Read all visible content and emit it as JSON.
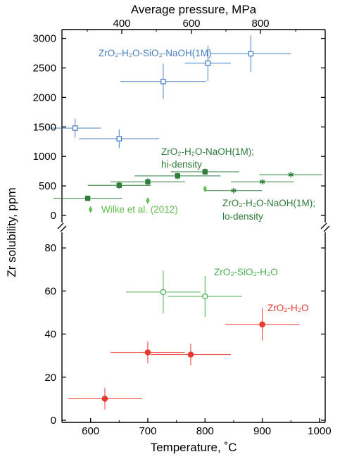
{
  "chart_data": {
    "type": "scatter",
    "top_axis_label": "Average pressure, MPa",
    "top_ticks": [
      "400",
      "600",
      "800"
    ],
    "xlabel": "Temperature, ˚C",
    "x_ticks": [
      "600",
      "700",
      "800",
      "900",
      "1000"
    ],
    "xlim": [
      550,
      1010
    ],
    "ylabel": "Zr solubility, ppm",
    "upper_panel": {
      "ylim": [
        0,
        3150
      ],
      "y_ticks": [
        "0",
        "500",
        "1000",
        "1500",
        "2000",
        "2500",
        "3000"
      ],
      "series": [
        {
          "name": "ZrO₂-H₂O-SiO₂-NaOH(1M)",
          "color": "#4a7fc0",
          "marker": "open-square",
          "points": [
            {
              "x": 573,
              "y": 1480,
              "xerr": 45,
              "yerr": 160
            },
            {
              "x": 650,
              "y": 1300,
              "xerr": 70,
              "yerr": 160
            },
            {
              "x": 727,
              "y": 2270,
              "xerr": 75,
              "yerr": 300
            },
            {
              "x": 805,
              "y": 2580,
              "xerr": 40,
              "yerr": 300
            },
            {
              "x": 880,
              "y": 2740,
              "xerr": 70,
              "yerr": 310
            }
          ]
        },
        {
          "name": "ZrO₂-H₂O-NaOH(1M); hi-density",
          "color": "#2e7d3a",
          "marker": "filled-square",
          "points": [
            {
              "x": 595,
              "y": 290,
              "xerr": 60,
              "yerr": 0
            },
            {
              "x": 650,
              "y": 510,
              "xerr": 55,
              "yerr": 60
            },
            {
              "x": 700,
              "y": 570,
              "xerr": 65,
              "yerr": 60
            },
            {
              "x": 752,
              "y": 670,
              "xerr": 75,
              "yerr": 60
            },
            {
              "x": 800,
              "y": 740,
              "xerr": 60,
              "yerr": 60
            }
          ]
        },
        {
          "name": "ZrO₂-H₂O-NaOH(1M); lo-density",
          "color": "#2e7d3a",
          "marker": "asterisk",
          "points": [
            {
              "x": 850,
              "y": 420,
              "xerr": 50,
              "yerr": 0
            },
            {
              "x": 900,
              "y": 570,
              "xerr": 55,
              "yerr": 0
            },
            {
              "x": 950,
              "y": 690,
              "xerr": 55,
              "yerr": 0
            }
          ]
        },
        {
          "name": "Wilke et al. (2012)",
          "color": "#5fbe4b",
          "marker": "diamond",
          "points": [
            {
              "x": 600,
              "y": 100
            },
            {
              "x": 700,
              "y": 250
            },
            {
              "x": 800,
              "y": 450
            }
          ]
        }
      ]
    },
    "lower_panel": {
      "ylim": [
        -1,
        83
      ],
      "y_ticks": [
        "0",
        "20",
        "40",
        "60",
        "80"
      ],
      "series": [
        {
          "name": "ZrO₂-SiO₂-H₂O",
          "color": "#4caf50",
          "marker": "open-circle",
          "points": [
            {
              "x": 727,
              "y": 59.5,
              "xerr": 65,
              "yerr": 10
            },
            {
              "x": 800,
              "y": 57.5,
              "xerr": 65,
              "yerr": 9.5
            }
          ]
        },
        {
          "name": "ZrO₂-H₂O",
          "color": "#e8392f",
          "marker": "filled-circle",
          "points": [
            {
              "x": 625,
              "y": 10,
              "xerr": 65,
              "yerr": 5
            },
            {
              "x": 700,
              "y": 31.5,
              "xerr": 65,
              "yerr": 5
            },
            {
              "x": 775,
              "y": 30.5,
              "xerr": 70,
              "yerr": 5
            },
            {
              "x": 900,
              "y": 44.5,
              "xerr": 65,
              "yerr": 7.5
            }
          ]
        }
      ]
    },
    "labels": {
      "blue": "ZrO₂-H₂O-SiO₂-NaOH(1M)",
      "hi_line1": "ZrO₂-H₂O-NaOH(1M);",
      "hi_line2": "hi-density",
      "lo_line1": "ZrO₂-H₂O-NaOH(1M);",
      "lo_line2": "lo-density",
      "wilke": "Wilke et al. (2012)",
      "sio2": "ZrO₂-SiO₂-H₂O",
      "h2o": "ZrO₂-H₂O"
    }
  }
}
